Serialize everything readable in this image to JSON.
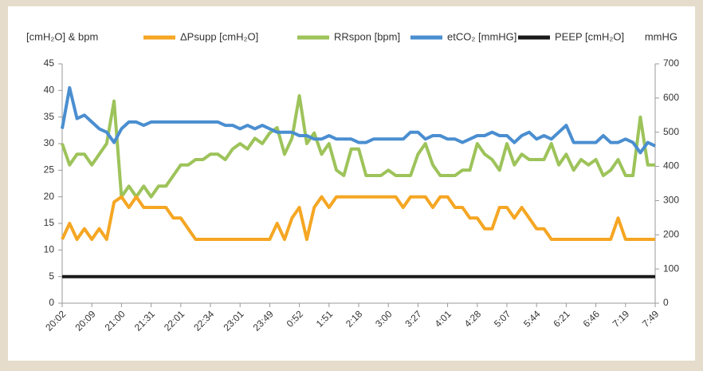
{
  "chart_data": {
    "type": "line",
    "y_label": "[cmH₂O] & bpm",
    "y2_label": "mmHG",
    "categories": [
      "20:02",
      null,
      null,
      null,
      "20:09",
      null,
      null,
      null,
      "21:00",
      null,
      null,
      null,
      "21:31",
      null,
      null,
      null,
      "22:01",
      null,
      null,
      null,
      "22:34",
      null,
      null,
      null,
      "23:01",
      null,
      null,
      null,
      "23:49",
      null,
      null,
      null,
      "0:52",
      null,
      null,
      null,
      "1:51",
      null,
      null,
      null,
      "2:18",
      null,
      null,
      null,
      "3:00",
      null,
      null,
      null,
      "3:27",
      null,
      null,
      null,
      "4:01",
      null,
      null,
      null,
      "4:28",
      null,
      null,
      null,
      "5:07",
      null,
      null,
      null,
      "5:44",
      null,
      null,
      null,
      "6:21",
      null,
      null,
      null,
      "6:46",
      null,
      null,
      null,
      "7:19",
      null,
      null,
      null,
      "7:49"
    ],
    "series": [
      {
        "name": "ΔPsupp [cmH₂O]",
        "color": "#f5a623",
        "values": [
          12,
          15,
          12,
          14,
          12,
          14,
          12,
          19,
          20,
          18,
          20,
          18,
          18,
          18,
          18,
          16,
          16,
          14,
          12,
          12,
          12,
          12,
          12,
          12,
          12,
          12,
          12,
          12,
          12,
          15,
          12,
          16,
          18,
          12,
          18,
          20,
          18,
          20,
          20,
          20,
          20,
          20,
          20,
          20,
          20,
          20,
          18,
          20,
          20,
          20,
          18,
          20,
          20,
          18,
          18,
          16,
          16,
          14,
          14,
          18,
          18,
          16,
          18,
          16,
          14,
          14,
          12,
          12,
          12,
          12,
          12,
          12,
          12,
          12,
          12,
          16,
          12,
          12,
          12,
          12,
          12
        ]
      },
      {
        "name": "RRspon [bpm]",
        "color": "#9dc35a",
        "values": [
          30,
          26,
          28,
          28,
          26,
          28,
          30,
          38,
          20,
          22,
          20,
          22,
          20,
          22,
          22,
          24,
          26,
          26,
          27,
          27,
          28,
          28,
          27,
          29,
          30,
          29,
          31,
          30,
          32,
          33,
          28,
          31,
          39,
          30,
          32,
          28,
          30,
          25,
          24,
          29,
          29,
          24,
          24,
          24,
          25,
          24,
          24,
          24,
          28,
          30,
          26,
          24,
          24,
          24,
          25,
          25,
          30,
          28,
          27,
          25,
          30,
          26,
          28,
          27,
          27,
          27,
          30,
          26,
          28,
          25,
          27,
          26,
          27,
          24,
          25,
          27,
          24,
          24,
          35,
          26,
          26
        ]
      },
      {
        "name": "etCO₂ [mmHG]",
        "color": "#4a8ed0",
        "axis": "y2",
        "values": [
          510,
          630,
          540,
          550,
          530,
          510,
          500,
          470,
          510,
          530,
          530,
          520,
          530,
          530,
          530,
          530,
          530,
          530,
          530,
          530,
          530,
          530,
          520,
          520,
          510,
          520,
          510,
          520,
          510,
          500,
          500,
          500,
          490,
          490,
          480,
          480,
          490,
          480,
          480,
          480,
          470,
          470,
          480,
          480,
          480,
          480,
          480,
          500,
          500,
          480,
          490,
          490,
          480,
          480,
          470,
          480,
          490,
          490,
          500,
          490,
          490,
          470,
          490,
          500,
          480,
          490,
          480,
          500,
          520,
          470,
          470,
          470,
          470,
          490,
          470,
          470,
          480,
          470,
          440,
          470,
          460
        ]
      },
      {
        "name": "PEEP [cmH₂O]",
        "color": "#1a1a1a",
        "values": [
          5,
          5,
          5,
          5,
          5,
          5,
          5,
          5,
          5,
          5,
          5,
          5,
          5,
          5,
          5,
          5,
          5,
          5,
          5,
          5,
          5,
          5,
          5,
          5,
          5,
          5,
          5,
          5,
          5,
          5,
          5,
          5,
          5,
          5,
          5,
          5,
          5,
          5,
          5,
          5,
          5,
          5,
          5,
          5,
          5,
          5,
          5,
          5,
          5,
          5,
          5,
          5,
          5,
          5,
          5,
          5,
          5,
          5,
          5,
          5,
          5,
          5,
          5,
          5,
          5,
          5,
          5,
          5,
          5,
          5,
          5,
          5,
          5,
          5,
          5,
          5,
          5,
          5,
          5,
          5,
          5
        ]
      }
    ],
    "ylim": [
      0,
      45
    ],
    "yticks": [
      0,
      5,
      10,
      15,
      20,
      25,
      30,
      35,
      40,
      45
    ],
    "y2lim": [
      0,
      700
    ],
    "y2ticks": [
      0,
      100,
      200,
      300,
      400,
      500,
      600,
      700
    ],
    "grid": false,
    "legend": "top"
  }
}
